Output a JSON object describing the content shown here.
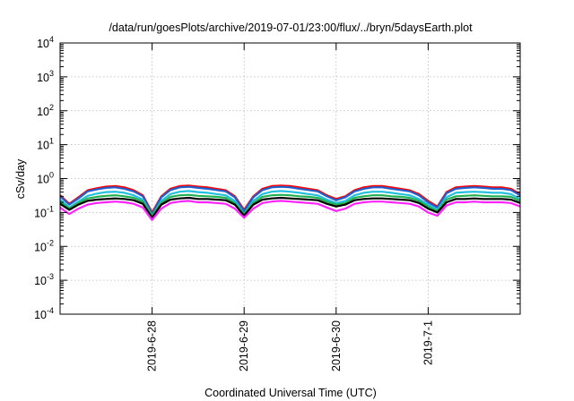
{
  "chart_data": {
    "type": "line",
    "title": "/data/run/goesPlots/archive/2019-07-01/23:00/flux/../bryn/5daysEarth.plot",
    "xlabel": "Coordinated Universal Time (UTC)",
    "ylabel": "cSv/day",
    "yscale": "log",
    "ylim": [
      0.0001,
      10000
    ],
    "xlim": [
      -1.0,
      4.0
    ],
    "x_unit": "days relative to 2019-6-28 00:00 UTC",
    "x_ticks": [
      {
        "x": 0,
        "label": "2019-6-28"
      },
      {
        "x": 1,
        "label": "2019-6-29"
      },
      {
        "x": 2,
        "label": "2019-6-30"
      },
      {
        "x": 3,
        "label": "2019-7-1"
      }
    ],
    "y_ticks": [
      {
        "y": 0.0001,
        "base": "10",
        "exp": "-4"
      },
      {
        "y": 0.001,
        "base": "10",
        "exp": "-3"
      },
      {
        "y": 0.01,
        "base": "10",
        "exp": "-2"
      },
      {
        "y": 0.1,
        "base": "10",
        "exp": "-1"
      },
      {
        "y": 1,
        "base": "10",
        "exp": "0"
      },
      {
        "y": 10,
        "base": "10",
        "exp": "1"
      },
      {
        "y": 100,
        "base": "10",
        "exp": "2"
      },
      {
        "y": 1000,
        "base": "10",
        "exp": "3"
      },
      {
        "y": 10000,
        "base": "10",
        "exp": "4"
      }
    ],
    "grid": true,
    "x": [
      -1.0,
      -0.9,
      -0.8,
      -0.7,
      -0.6,
      -0.5,
      -0.4,
      -0.3,
      -0.2,
      -0.1,
      0.0,
      0.1,
      0.2,
      0.3,
      0.4,
      0.5,
      0.6,
      0.7,
      0.8,
      0.9,
      1.0,
      1.1,
      1.2,
      1.3,
      1.4,
      1.5,
      1.6,
      1.7,
      1.8,
      1.9,
      2.0,
      2.1,
      2.2,
      2.3,
      2.4,
      2.5,
      2.6,
      2.7,
      2.8,
      2.9,
      3.0,
      3.1,
      3.2,
      3.3,
      3.4,
      3.5,
      3.6,
      3.7,
      3.8,
      3.9,
      4.0
    ],
    "series": [
      {
        "color": "#ff0000",
        "values": [
          0.32,
          0.18,
          0.28,
          0.45,
          0.52,
          0.58,
          0.6,
          0.55,
          0.45,
          0.32,
          0.1,
          0.3,
          0.5,
          0.6,
          0.62,
          0.58,
          0.55,
          0.5,
          0.45,
          0.3,
          0.12,
          0.3,
          0.5,
          0.6,
          0.62,
          0.6,
          0.55,
          0.5,
          0.45,
          0.32,
          0.25,
          0.3,
          0.45,
          0.55,
          0.6,
          0.6,
          0.55,
          0.5,
          0.45,
          0.35,
          0.22,
          0.15,
          0.4,
          0.55,
          0.58,
          0.6,
          0.58,
          0.55,
          0.55,
          0.5,
          0.35
        ]
      },
      {
        "color": "#1f5fcf",
        "values": [
          0.3,
          0.17,
          0.26,
          0.42,
          0.48,
          0.53,
          0.55,
          0.5,
          0.42,
          0.3,
          0.09,
          0.28,
          0.46,
          0.55,
          0.57,
          0.53,
          0.5,
          0.46,
          0.42,
          0.28,
          0.11,
          0.28,
          0.46,
          0.55,
          0.57,
          0.55,
          0.5,
          0.46,
          0.42,
          0.3,
          0.23,
          0.28,
          0.42,
          0.5,
          0.55,
          0.55,
          0.5,
          0.46,
          0.42,
          0.32,
          0.2,
          0.14,
          0.37,
          0.5,
          0.53,
          0.55,
          0.53,
          0.5,
          0.5,
          0.46,
          0.32
        ]
      },
      {
        "color": "#22c0e0",
        "values": [
          0.24,
          0.14,
          0.21,
          0.31,
          0.36,
          0.4,
          0.41,
          0.38,
          0.32,
          0.24,
          0.08,
          0.22,
          0.35,
          0.41,
          0.43,
          0.4,
          0.38,
          0.35,
          0.32,
          0.22,
          0.09,
          0.22,
          0.35,
          0.41,
          0.43,
          0.41,
          0.38,
          0.35,
          0.32,
          0.24,
          0.19,
          0.22,
          0.32,
          0.38,
          0.41,
          0.41,
          0.38,
          0.35,
          0.32,
          0.25,
          0.17,
          0.12,
          0.28,
          0.38,
          0.4,
          0.41,
          0.4,
          0.38,
          0.38,
          0.35,
          0.25
        ]
      },
      {
        "color": "#20b050",
        "values": [
          0.21,
          0.13,
          0.19,
          0.26,
          0.29,
          0.31,
          0.32,
          0.3,
          0.27,
          0.21,
          0.08,
          0.19,
          0.29,
          0.32,
          0.33,
          0.31,
          0.3,
          0.29,
          0.27,
          0.19,
          0.09,
          0.19,
          0.29,
          0.32,
          0.33,
          0.32,
          0.3,
          0.29,
          0.27,
          0.21,
          0.17,
          0.19,
          0.27,
          0.3,
          0.32,
          0.32,
          0.3,
          0.29,
          0.27,
          0.22,
          0.15,
          0.11,
          0.24,
          0.3,
          0.31,
          0.32,
          0.31,
          0.3,
          0.3,
          0.29,
          0.22
        ]
      },
      {
        "color": "#000000",
        "values": [
          0.18,
          0.12,
          0.17,
          0.22,
          0.24,
          0.25,
          0.26,
          0.25,
          0.23,
          0.18,
          0.07,
          0.17,
          0.24,
          0.26,
          0.27,
          0.25,
          0.25,
          0.24,
          0.23,
          0.17,
          0.08,
          0.17,
          0.24,
          0.26,
          0.27,
          0.26,
          0.25,
          0.24,
          0.23,
          0.18,
          0.15,
          0.17,
          0.23,
          0.25,
          0.26,
          0.26,
          0.25,
          0.24,
          0.23,
          0.19,
          0.13,
          0.1,
          0.2,
          0.25,
          0.25,
          0.26,
          0.25,
          0.25,
          0.25,
          0.24,
          0.19
        ]
      },
      {
        "color": "#ff22ff",
        "values": [
          0.14,
          0.09,
          0.13,
          0.17,
          0.19,
          0.2,
          0.21,
          0.2,
          0.18,
          0.14,
          0.06,
          0.13,
          0.19,
          0.21,
          0.22,
          0.2,
          0.2,
          0.19,
          0.18,
          0.13,
          0.07,
          0.13,
          0.19,
          0.21,
          0.22,
          0.21,
          0.2,
          0.19,
          0.18,
          0.14,
          0.11,
          0.13,
          0.18,
          0.2,
          0.21,
          0.21,
          0.2,
          0.19,
          0.18,
          0.15,
          0.1,
          0.08,
          0.16,
          0.2,
          0.2,
          0.21,
          0.2,
          0.2,
          0.2,
          0.19,
          0.15
        ]
      }
    ]
  }
}
